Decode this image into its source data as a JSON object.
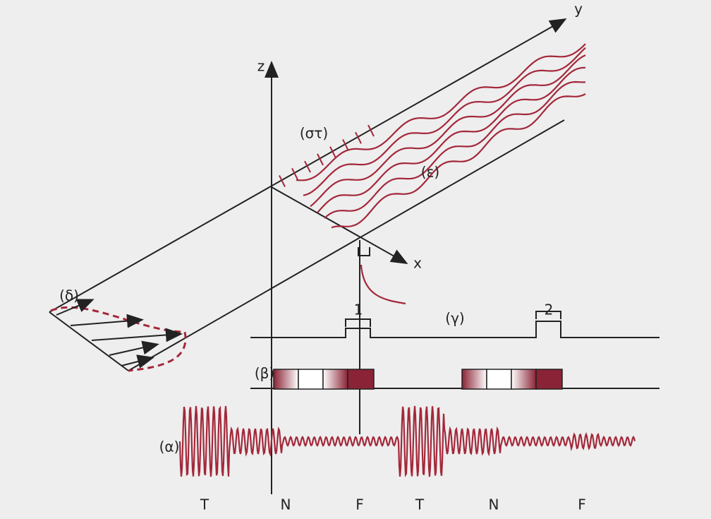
{
  "axes": {
    "z": "z",
    "y": "y",
    "x": "x"
  },
  "labels": {
    "st": "(στ)",
    "e": "(ε)",
    "d": "(δ)",
    "g": "(γ)",
    "b": "(β)",
    "a": "(α)",
    "one": "1",
    "two": "2"
  },
  "bottom_labels": [
    "T",
    "N",
    "F",
    "T",
    "N",
    "F"
  ]
}
